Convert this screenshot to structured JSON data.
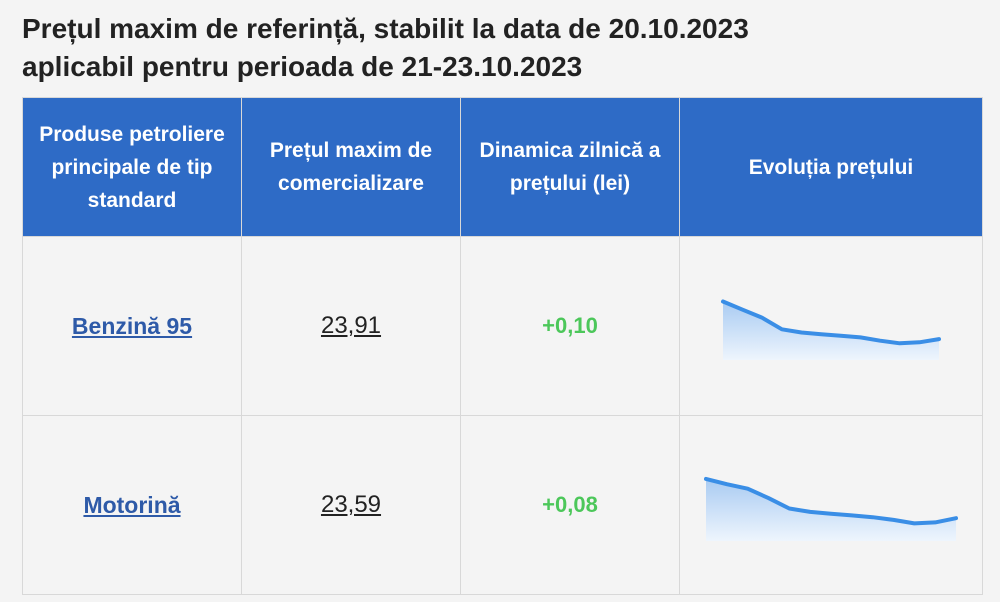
{
  "page": {
    "title_line1": "Prețul maxim de referință, stabilit la data de 20.10.2023",
    "title_line2": "aplicabil pentru perioada de 21-23.10.2023"
  },
  "table": {
    "headers": [
      "Produse petroliere principale de tip standard",
      "Prețul maxim de comercializare",
      "Dinamica zilnică a prețului (lei)",
      "Evoluția prețului"
    ],
    "rows": [
      {
        "product": "Benzină 95",
        "price": "23,91",
        "delta": "+0,10"
      },
      {
        "product": "Motorină",
        "price": "23,59",
        "delta": "+0,08"
      }
    ]
  },
  "colors": {
    "header_bg": "#2e6bc6",
    "spark_line": "#3a8ee6",
    "spark_fill_top": "#a9cbf2",
    "spark_fill_bottom": "#eef5fd",
    "positive": "#4cc75a",
    "link": "#2e5aa8"
  },
  "chart_data": [
    {
      "type": "area",
      "series": [
        {
          "values": [
            25.2,
            24.95,
            24.7,
            24.35,
            24.25,
            24.2,
            24.15,
            24.1,
            24.0,
            23.92,
            23.95,
            24.05
          ]
        }
      ],
      "ylim": [
        23.5,
        25.4
      ],
      "grid": false
    },
    {
      "type": "area",
      "series": [
        {
          "values": [
            24.9,
            24.75,
            24.62,
            24.35,
            24.05,
            23.95,
            23.9,
            23.85,
            23.8,
            23.72,
            23.62,
            23.65,
            23.77
          ]
        }
      ],
      "ylim": [
        23.2,
        25.1
      ],
      "grid": false
    }
  ]
}
